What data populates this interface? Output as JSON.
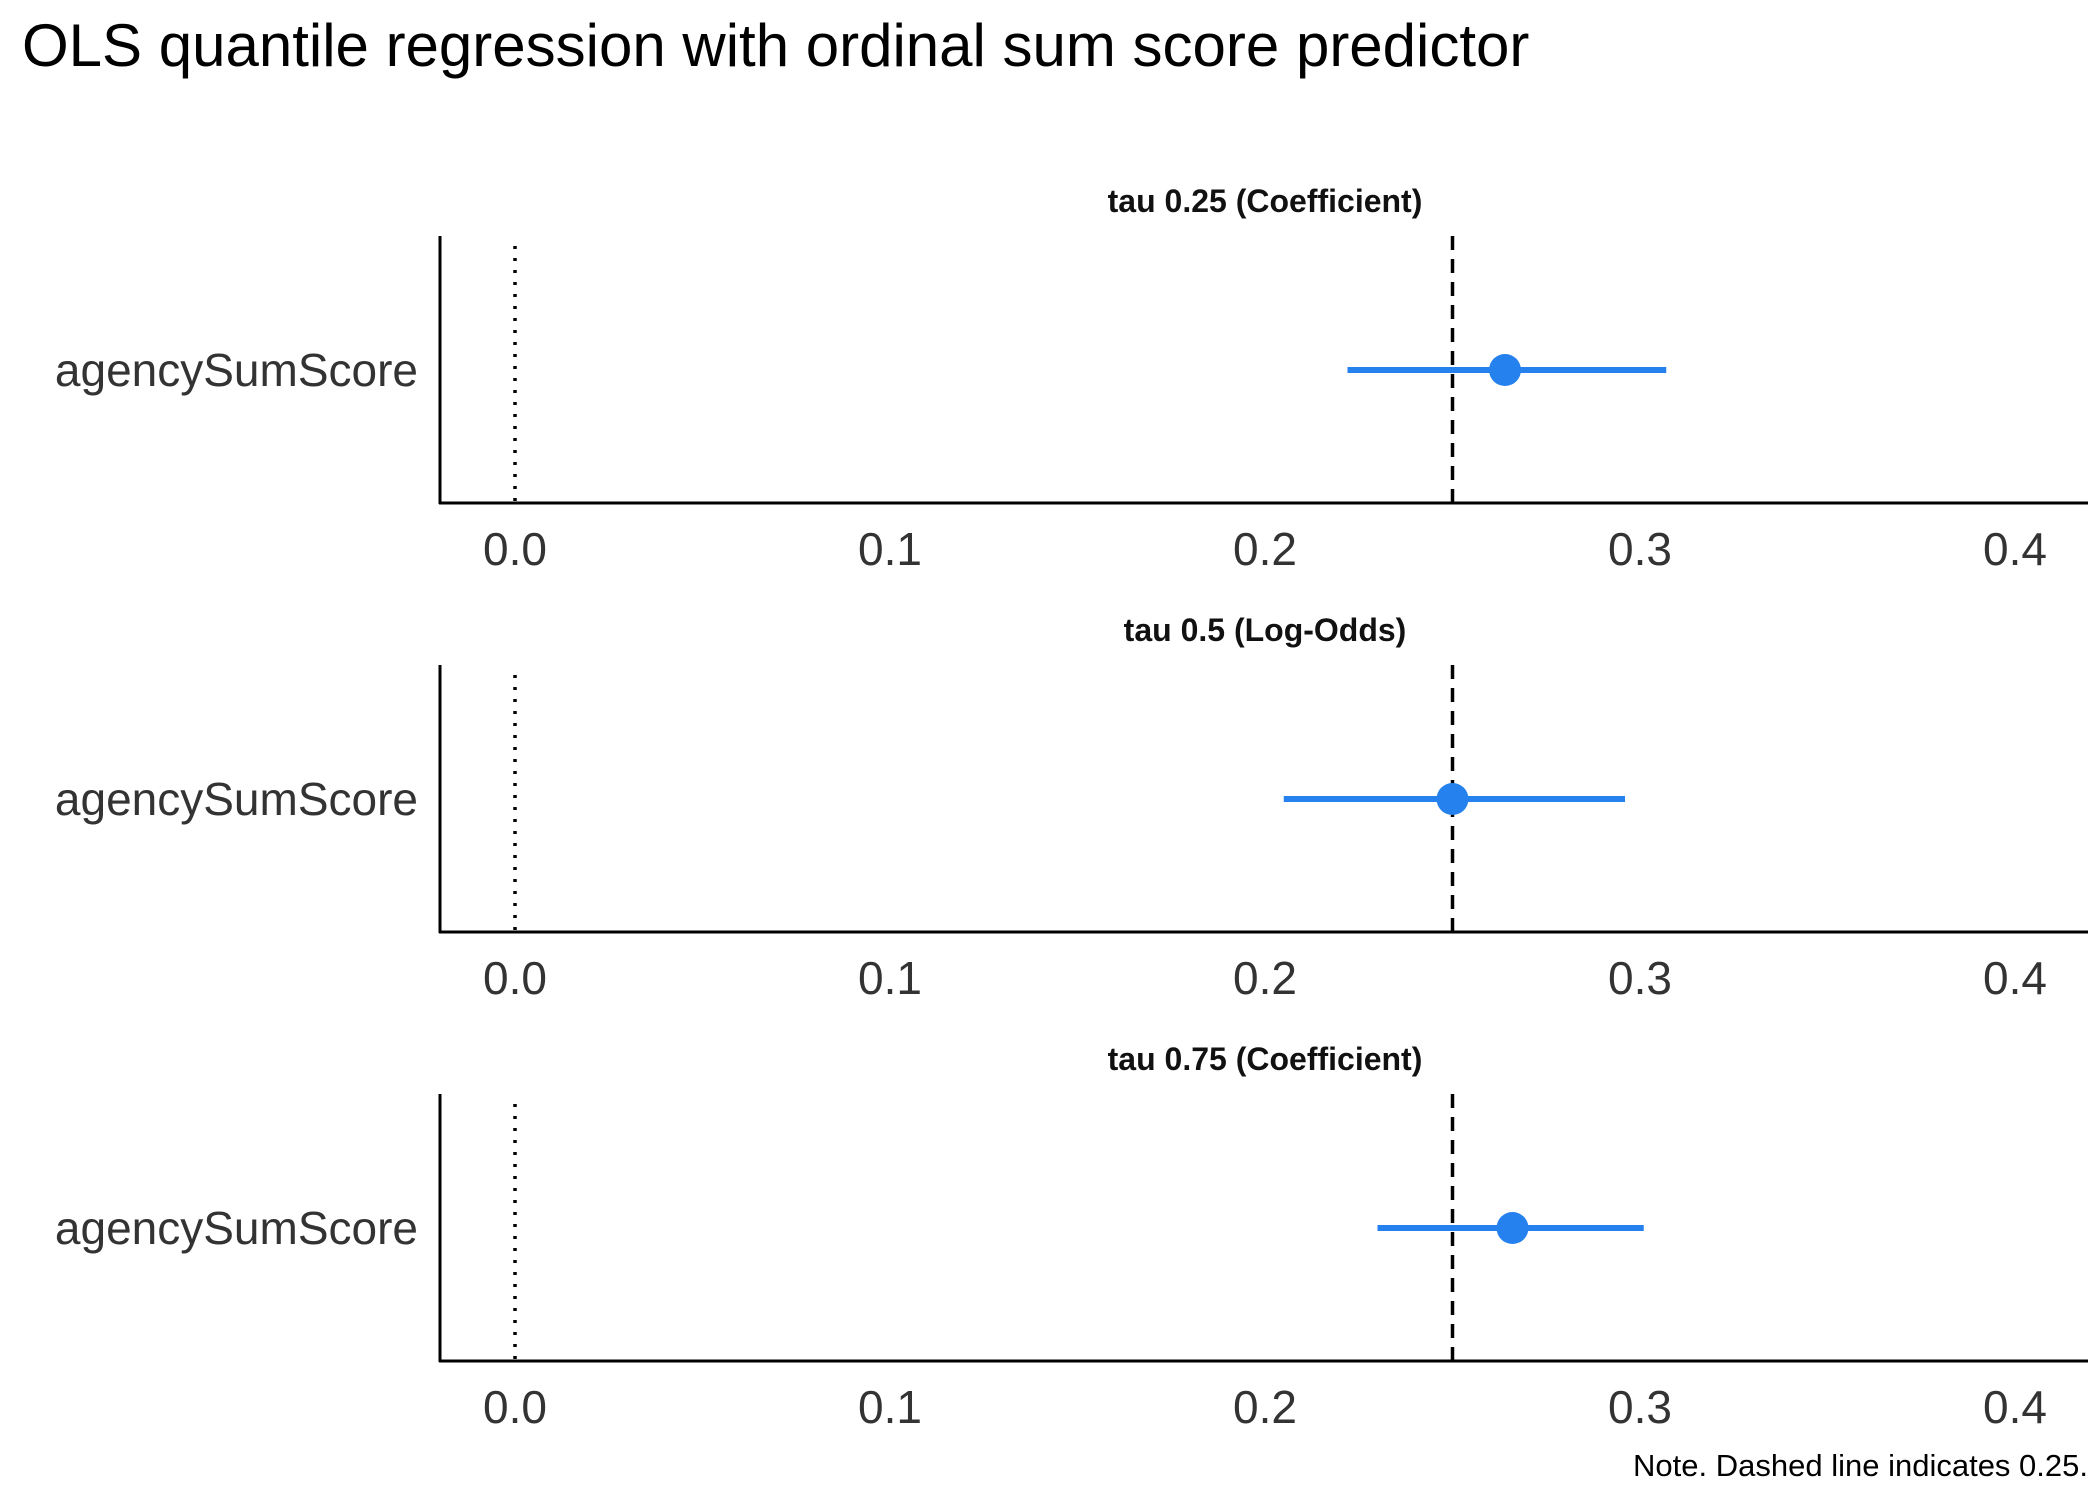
{
  "chart_data": {
    "type": "scatter",
    "title": "OLS quantile regression with ordinal sum score predictor",
    "note": "Note. Dashed line indicates 0.25.",
    "xlim": [
      -0.02,
      0.42
    ],
    "x_ticks": [
      0.0,
      0.1,
      0.2,
      0.3,
      0.4
    ],
    "x_tick_labels": [
      "0.0",
      "0.1",
      "0.2",
      "0.3",
      "0.4"
    ],
    "reference_zero": 0.0,
    "reference_dashed": 0.25,
    "grid": false,
    "point_color": "#2581ed",
    "panels": [
      {
        "label": "tau 0.25 (Coefficient)",
        "term": "agencySumScore",
        "estimate": 0.264,
        "ci_low": 0.222,
        "ci_high": 0.307
      },
      {
        "label": "tau 0.5 (Log-Odds)",
        "term": "agencySumScore",
        "estimate": 0.25,
        "ci_low": 0.205,
        "ci_high": 0.296
      },
      {
        "label": "tau 0.75 (Coefficient)",
        "term": "agencySumScore",
        "estimate": 0.266,
        "ci_low": 0.23,
        "ci_high": 0.301
      }
    ]
  }
}
